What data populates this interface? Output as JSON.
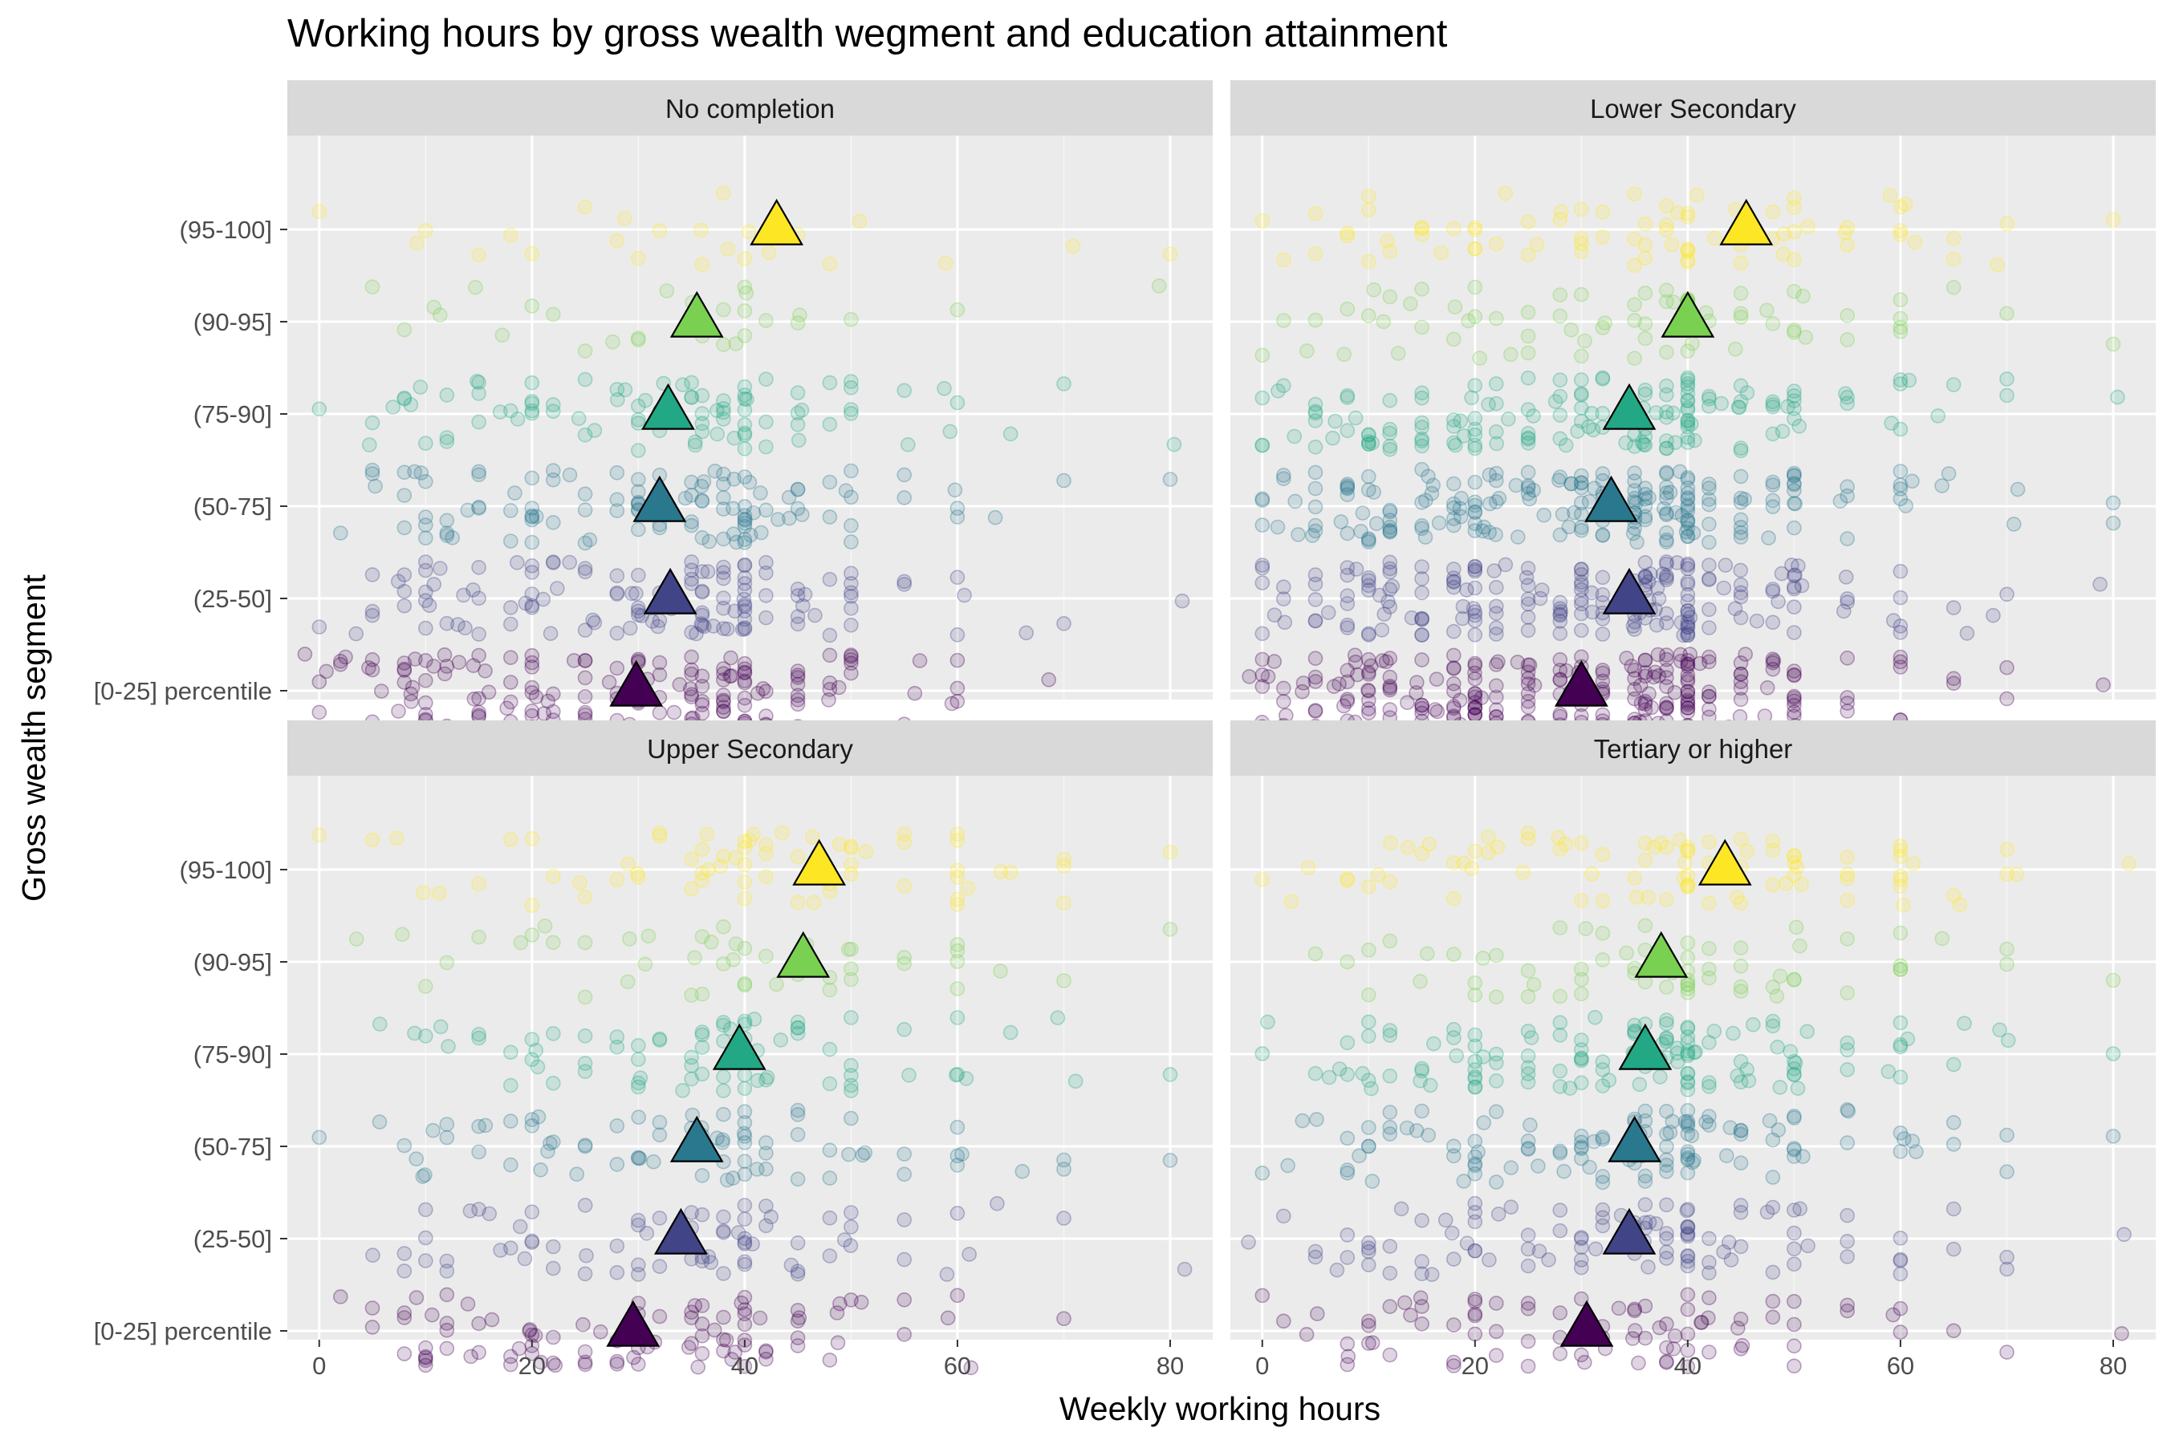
{
  "chart_data": {
    "type": "scatter",
    "title": "Working hours by gross wealth wegment and education attainment",
    "xlabel": "Weekly working hours",
    "ylabel": "Gross wealth segment",
    "xlim": [
      -3,
      84
    ],
    "x_ticks": [
      0,
      20,
      40,
      60,
      80
    ],
    "categories": [
      "[0-25] percentile",
      "(25-50]",
      "(50-75]",
      "(75-90]",
      "(90-95]",
      "(95-100]"
    ],
    "category_colors": [
      "#440154",
      "#414487",
      "#2A788E",
      "#22A884",
      "#7AD151",
      "#FDE725"
    ],
    "grid": true,
    "legend": "none",
    "panels": [
      {
        "name": "No completion",
        "mean_hours": [
          29.8,
          33.0,
          32.0,
          32.8,
          35.5,
          43.0
        ],
        "raw_points": {
          "x_values": [
            0,
            2,
            5,
            8,
            10,
            12,
            15,
            18,
            20,
            22,
            25,
            28,
            30,
            32,
            35,
            36,
            38,
            40,
            42,
            45,
            48,
            50,
            55,
            60,
            65,
            70,
            80
          ],
          "density_by_segment": [
            [
              4,
              3,
              5,
              6,
              9,
              6,
              9,
              5,
              9,
              5,
              8,
              5,
              10,
              5,
              8,
              8,
              10,
              14,
              5,
              8,
              4,
              6,
              3,
              4,
              0,
              1,
              0
            ],
            [
              1,
              1,
              3,
              4,
              6,
              4,
              6,
              3,
              7,
              4,
              6,
              4,
              9,
              4,
              7,
              7,
              9,
              14,
              4,
              6,
              3,
              6,
              2,
              3,
              1,
              1,
              1
            ],
            [
              0,
              1,
              3,
              4,
              5,
              4,
              5,
              3,
              7,
              3,
              5,
              3,
              8,
              4,
              6,
              6,
              8,
              13,
              4,
              6,
              2,
              5,
              2,
              3,
              1,
              1,
              1
            ],
            [
              1,
              0,
              2,
              3,
              3,
              3,
              4,
              2,
              6,
              2,
              4,
              2,
              6,
              3,
              5,
              5,
              6,
              10,
              3,
              5,
              2,
              4,
              2,
              3,
              1,
              1,
              1
            ],
            [
              0,
              0,
              1,
              1,
              1,
              1,
              1,
              1,
              1,
              1,
              1,
              1,
              2,
              1,
              2,
              2,
              3,
              4,
              1,
              2,
              0,
              1,
              0,
              1,
              0,
              0,
              1
            ],
            [
              1,
              0,
              0,
              1,
              1,
              0,
              1,
              1,
              1,
              0,
              1,
              1,
              2,
              1,
              1,
              1,
              2,
              2,
              1,
              1,
              1,
              1,
              0,
              1,
              0,
              1,
              1
            ]
          ]
        }
      },
      {
        "name": "Lower Secondary",
        "mean_hours": [
          30.0,
          34.5,
          32.8,
          34.5,
          40.0,
          45.5
        ],
        "raw_points": {
          "x_values": [
            0,
            2,
            5,
            8,
            10,
            12,
            15,
            18,
            20,
            22,
            25,
            28,
            30,
            32,
            35,
            36,
            38,
            40,
            42,
            45,
            48,
            50,
            55,
            60,
            65,
            70,
            80
          ],
          "density_by_segment": [
            [
              7,
              6,
              8,
              9,
              12,
              9,
              12,
              9,
              16,
              9,
              12,
              9,
              14,
              9,
              12,
              12,
              14,
              22,
              7,
              9,
              6,
              10,
              4,
              5,
              2,
              2,
              1
            ],
            [
              4,
              4,
              6,
              7,
              9,
              7,
              9,
              7,
              12,
              7,
              9,
              7,
              11,
              7,
              10,
              10,
              12,
              20,
              6,
              8,
              5,
              9,
              4,
              5,
              2,
              2,
              1
            ],
            [
              4,
              4,
              6,
              7,
              9,
              7,
              9,
              7,
              12,
              7,
              9,
              7,
              11,
              7,
              10,
              10,
              12,
              20,
              6,
              8,
              5,
              9,
              4,
              6,
              2,
              2,
              2
            ],
            [
              3,
              3,
              5,
              5,
              7,
              5,
              7,
              5,
              9,
              5,
              7,
              5,
              9,
              5,
              8,
              8,
              9,
              16,
              5,
              7,
              4,
              8,
              3,
              5,
              2,
              2,
              1
            ],
            [
              1,
              1,
              2,
              2,
              3,
              2,
              3,
              2,
              4,
              2,
              3,
              2,
              4,
              2,
              3,
              3,
              4,
              8,
              2,
              4,
              2,
              5,
              2,
              4,
              1,
              1,
              1
            ],
            [
              1,
              1,
              2,
              2,
              3,
              2,
              3,
              2,
              4,
              2,
              3,
              2,
              4,
              2,
              3,
              3,
              4,
              8,
              2,
              4,
              3,
              6,
              3,
              6,
              2,
              2,
              1
            ]
          ]
        }
      },
      {
        "name": "Upper Secondary",
        "mean_hours": [
          29.5,
          34.0,
          35.5,
          39.5,
          45.5,
          47.0
        ],
        "raw_points": {
          "x_values": [
            0,
            2,
            5,
            8,
            10,
            12,
            15,
            18,
            20,
            22,
            25,
            28,
            30,
            32,
            35,
            36,
            38,
            40,
            42,
            45,
            48,
            50,
            55,
            60,
            65,
            70,
            80
          ],
          "density_by_segment": [
            [
              0,
              1,
              2,
              4,
              6,
              4,
              5,
              3,
              7,
              3,
              5,
              3,
              7,
              3,
              5,
              5,
              6,
              10,
              3,
              5,
              2,
              4,
              2,
              3,
              0,
              1,
              0
            ],
            [
              0,
              0,
              1,
              2,
              3,
              2,
              3,
              2,
              5,
              2,
              3,
              2,
              5,
              2,
              4,
              4,
              5,
              9,
              3,
              4,
              2,
              4,
              2,
              3,
              1,
              1,
              1
            ],
            [
              1,
              0,
              1,
              2,
              3,
              2,
              3,
              2,
              5,
              2,
              3,
              2,
              5,
              2,
              4,
              4,
              5,
              9,
              3,
              4,
              2,
              4,
              2,
              4,
              1,
              2,
              1
            ],
            [
              0,
              0,
              1,
              1,
              2,
              1,
              2,
              2,
              4,
              2,
              3,
              2,
              5,
              2,
              4,
              4,
              5,
              9,
              3,
              4,
              2,
              5,
              2,
              4,
              1,
              2,
              1
            ],
            [
              0,
              0,
              1,
              1,
              1,
              1,
              1,
              1,
              2,
              1,
              2,
              1,
              2,
              1,
              2,
              2,
              3,
              5,
              2,
              3,
              2,
              4,
              2,
              4,
              1,
              1,
              1
            ],
            [
              1,
              0,
              1,
              1,
              1,
              1,
              1,
              1,
              2,
              1,
              2,
              1,
              3,
              2,
              3,
              3,
              4,
              7,
              3,
              4,
              3,
              6,
              3,
              7,
              2,
              3,
              1
            ]
          ]
        }
      },
      {
        "name": "Tertiary or higher",
        "mean_hours": [
          30.5,
          34.5,
          35.0,
          36.0,
          37.5,
          43.5
        ],
        "raw_points": {
          "x_values": [
            0,
            2,
            5,
            8,
            10,
            12,
            15,
            18,
            20,
            22,
            25,
            28,
            30,
            32,
            35,
            36,
            38,
            40,
            42,
            45,
            48,
            50,
            55,
            60,
            65,
            70,
            80
          ],
          "density_by_segment": [
            [
              1,
              1,
              2,
              3,
              4,
              3,
              4,
              3,
              5,
              3,
              4,
              3,
              5,
              3,
              4,
              4,
              5,
              9,
              3,
              4,
              2,
              4,
              2,
              3,
              1,
              1,
              1
            ],
            [
              1,
              1,
              2,
              3,
              4,
              3,
              4,
              3,
              6,
              3,
              4,
              3,
              6,
              3,
              5,
              5,
              6,
              12,
              4,
              5,
              3,
              6,
              3,
              4,
              2,
              2,
              1
            ],
            [
              1,
              1,
              2,
              3,
              5,
              3,
              4,
              3,
              7,
              3,
              5,
              3,
              7,
              4,
              6,
              6,
              7,
              14,
              4,
              6,
              3,
              7,
              3,
              5,
              2,
              2,
              1
            ],
            [
              1,
              1,
              2,
              3,
              5,
              3,
              5,
              3,
              8,
              4,
              6,
              4,
              8,
              4,
              7,
              7,
              8,
              15,
              5,
              7,
              4,
              8,
              3,
              6,
              2,
              2,
              1
            ],
            [
              0,
              0,
              1,
              1,
              2,
              1,
              2,
              1,
              3,
              2,
              3,
              2,
              4,
              2,
              3,
              3,
              4,
              8,
              3,
              4,
              2,
              5,
              2,
              4,
              1,
              2,
              1
            ],
            [
              1,
              1,
              1,
              2,
              2,
              2,
              3,
              2,
              4,
              2,
              3,
              2,
              4,
              2,
              3,
              3,
              4,
              9,
              3,
              5,
              3,
              7,
              4,
              8,
              2,
              3,
              1
            ]
          ]
        }
      }
    ]
  }
}
